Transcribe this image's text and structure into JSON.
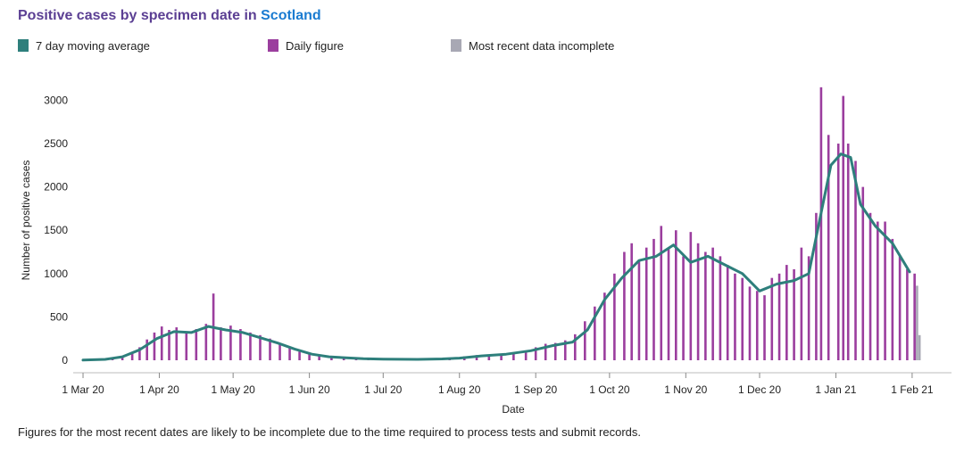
{
  "header": {
    "title_prefix": "Positive cases by specimen date in ",
    "title_place": "Scotland"
  },
  "legend": [
    {
      "label": "7 day moving average",
      "color": "#2e7f7c"
    },
    {
      "label": "Daily figure",
      "color": "#9b3e9e"
    },
    {
      "label": "Most recent data incomplete",
      "color": "#a8a8b4"
    }
  ],
  "footnote": "Figures for the most recent dates are likely to be incomplete due to the time required to process tests and submit records.",
  "chart_data": {
    "type": "bar",
    "xlabel": "Date",
    "ylabel": "Number of positive cases",
    "ylim": [
      0,
      3200
    ],
    "yticks": [
      0,
      500,
      1000,
      1500,
      2000,
      2500,
      3000
    ],
    "xlim": [
      "2020-02-26",
      "2021-02-17"
    ],
    "xticks": [
      {
        "date": "2020-03-01",
        "label": "1 Mar 20"
      },
      {
        "date": "2020-04-01",
        "label": "1 Apr 20"
      },
      {
        "date": "2020-05-01",
        "label": "1 May 20"
      },
      {
        "date": "2020-06-01",
        "label": "1 Jun 20"
      },
      {
        "date": "2020-07-01",
        "label": "1 Jul 20"
      },
      {
        "date": "2020-08-01",
        "label": "1 Aug 20"
      },
      {
        "date": "2020-09-01",
        "label": "1 Sep 20"
      },
      {
        "date": "2020-10-01",
        "label": "1 Oct 20"
      },
      {
        "date": "2020-11-01",
        "label": "1 Nov 20"
      },
      {
        "date": "2020-12-01",
        "label": "1 Dec 20"
      },
      {
        "date": "2021-01-01",
        "label": "1 Jan 21"
      },
      {
        "date": "2021-02-01",
        "label": "1 Feb 21"
      }
    ],
    "grid": false,
    "legend_position": "top",
    "series": [
      {
        "name": "Daily figure",
        "kind": "bar",
        "color": "#9b3e9e",
        "points": [
          [
            "2020-03-01",
            1
          ],
          [
            "2020-03-05",
            3
          ],
          [
            "2020-03-09",
            8
          ],
          [
            "2020-03-13",
            22
          ],
          [
            "2020-03-17",
            40
          ],
          [
            "2020-03-21",
            95
          ],
          [
            "2020-03-24",
            150
          ],
          [
            "2020-03-27",
            240
          ],
          [
            "2020-03-30",
            320
          ],
          [
            "2020-04-02",
            390
          ],
          [
            "2020-04-05",
            350
          ],
          [
            "2020-04-08",
            380
          ],
          [
            "2020-04-12",
            330
          ],
          [
            "2020-04-16",
            360
          ],
          [
            "2020-04-20",
            420
          ],
          [
            "2020-04-23",
            770
          ],
          [
            "2020-04-26",
            380
          ],
          [
            "2020-04-30",
            400
          ],
          [
            "2020-05-04",
            360
          ],
          [
            "2020-05-08",
            320
          ],
          [
            "2020-05-12",
            290
          ],
          [
            "2020-05-16",
            250
          ],
          [
            "2020-05-20",
            200
          ],
          [
            "2020-05-24",
            150
          ],
          [
            "2020-05-28",
            100
          ],
          [
            "2020-06-01",
            70
          ],
          [
            "2020-06-05",
            50
          ],
          [
            "2020-06-10",
            35
          ],
          [
            "2020-06-15",
            28
          ],
          [
            "2020-06-20",
            20
          ],
          [
            "2020-06-25",
            15
          ],
          [
            "2020-07-01",
            10
          ],
          [
            "2020-07-10",
            8
          ],
          [
            "2020-07-20",
            10
          ],
          [
            "2020-07-28",
            20
          ],
          [
            "2020-08-03",
            45
          ],
          [
            "2020-08-08",
            60
          ],
          [
            "2020-08-13",
            55
          ],
          [
            "2020-08-18",
            65
          ],
          [
            "2020-08-23",
            80
          ],
          [
            "2020-08-28",
            110
          ],
          [
            "2020-09-01",
            150
          ],
          [
            "2020-09-05",
            190
          ],
          [
            "2020-09-09",
            200
          ],
          [
            "2020-09-13",
            230
          ],
          [
            "2020-09-17",
            300
          ],
          [
            "2020-09-21",
            450
          ],
          [
            "2020-09-25",
            620
          ],
          [
            "2020-09-29",
            780
          ],
          [
            "2020-10-03",
            1000
          ],
          [
            "2020-10-07",
            1250
          ],
          [
            "2020-10-10",
            1350
          ],
          [
            "2020-10-13",
            1150
          ],
          [
            "2020-10-16",
            1300
          ],
          [
            "2020-10-19",
            1400
          ],
          [
            "2020-10-22",
            1550
          ],
          [
            "2020-10-25",
            1300
          ],
          [
            "2020-10-28",
            1500
          ],
          [
            "2020-10-31",
            1200
          ],
          [
            "2020-11-03",
            1480
          ],
          [
            "2020-11-06",
            1350
          ],
          [
            "2020-11-09",
            1250
          ],
          [
            "2020-11-12",
            1300
          ],
          [
            "2020-11-15",
            1200
          ],
          [
            "2020-11-18",
            1100
          ],
          [
            "2020-11-21",
            1000
          ],
          [
            "2020-11-24",
            950
          ],
          [
            "2020-11-27",
            850
          ],
          [
            "2020-11-30",
            800
          ],
          [
            "2020-12-03",
            750
          ],
          [
            "2020-12-06",
            950
          ],
          [
            "2020-12-09",
            1000
          ],
          [
            "2020-12-12",
            1100
          ],
          [
            "2020-12-15",
            1050
          ],
          [
            "2020-12-18",
            1300
          ],
          [
            "2020-12-21",
            1200
          ],
          [
            "2020-12-24",
            1700
          ],
          [
            "2020-12-26",
            3150
          ],
          [
            "2020-12-29",
            2600
          ],
          [
            "2021-01-02",
            2500
          ],
          [
            "2021-01-04",
            3050
          ],
          [
            "2021-01-06",
            2500
          ],
          [
            "2021-01-09",
            2300
          ],
          [
            "2021-01-12",
            2000
          ],
          [
            "2021-01-15",
            1700
          ],
          [
            "2021-01-18",
            1600
          ],
          [
            "2021-01-21",
            1600
          ],
          [
            "2021-01-24",
            1400
          ],
          [
            "2021-01-27",
            1200
          ],
          [
            "2021-01-30",
            1050
          ],
          [
            "2021-02-02",
            1000
          ]
        ]
      },
      {
        "name": "Most recent data incomplete",
        "kind": "bar",
        "color": "#a8a8b4",
        "points": [
          [
            "2021-02-03",
            860
          ],
          [
            "2021-02-04",
            290
          ]
        ]
      },
      {
        "name": "7 day moving average",
        "kind": "line",
        "color": "#2e7f7c",
        "points": [
          [
            "2020-03-01",
            2
          ],
          [
            "2020-03-10",
            10
          ],
          [
            "2020-03-17",
            40
          ],
          [
            "2020-03-24",
            120
          ],
          [
            "2020-03-31",
            250
          ],
          [
            "2020-04-07",
            330
          ],
          [
            "2020-04-14",
            320
          ],
          [
            "2020-04-21",
            390
          ],
          [
            "2020-04-28",
            350
          ],
          [
            "2020-05-05",
            320
          ],
          [
            "2020-05-12",
            260
          ],
          [
            "2020-05-19",
            200
          ],
          [
            "2020-05-26",
            130
          ],
          [
            "2020-06-02",
            70
          ],
          [
            "2020-06-09",
            40
          ],
          [
            "2020-06-16",
            28
          ],
          [
            "2020-06-23",
            18
          ],
          [
            "2020-07-01",
            12
          ],
          [
            "2020-07-15",
            10
          ],
          [
            "2020-07-25",
            15
          ],
          [
            "2020-08-01",
            25
          ],
          [
            "2020-08-10",
            50
          ],
          [
            "2020-08-20",
            70
          ],
          [
            "2020-08-30",
            110
          ],
          [
            "2020-09-08",
            170
          ],
          [
            "2020-09-16",
            210
          ],
          [
            "2020-09-22",
            350
          ],
          [
            "2020-09-29",
            700
          ],
          [
            "2020-10-06",
            950
          ],
          [
            "2020-10-13",
            1150
          ],
          [
            "2020-10-20",
            1200
          ],
          [
            "2020-10-27",
            1330
          ],
          [
            "2020-11-03",
            1130
          ],
          [
            "2020-11-10",
            1200
          ],
          [
            "2020-11-17",
            1100
          ],
          [
            "2020-11-24",
            1000
          ],
          [
            "2020-12-01",
            800
          ],
          [
            "2020-12-08",
            880
          ],
          [
            "2020-12-15",
            920
          ],
          [
            "2020-12-21",
            1000
          ],
          [
            "2020-12-26",
            1700
          ],
          [
            "2020-12-30",
            2250
          ],
          [
            "2021-01-03",
            2380
          ],
          [
            "2021-01-07",
            2340
          ],
          [
            "2021-01-11",
            1800
          ],
          [
            "2021-01-17",
            1550
          ],
          [
            "2021-01-24",
            1350
          ],
          [
            "2021-01-31",
            1020
          ]
        ]
      }
    ]
  }
}
